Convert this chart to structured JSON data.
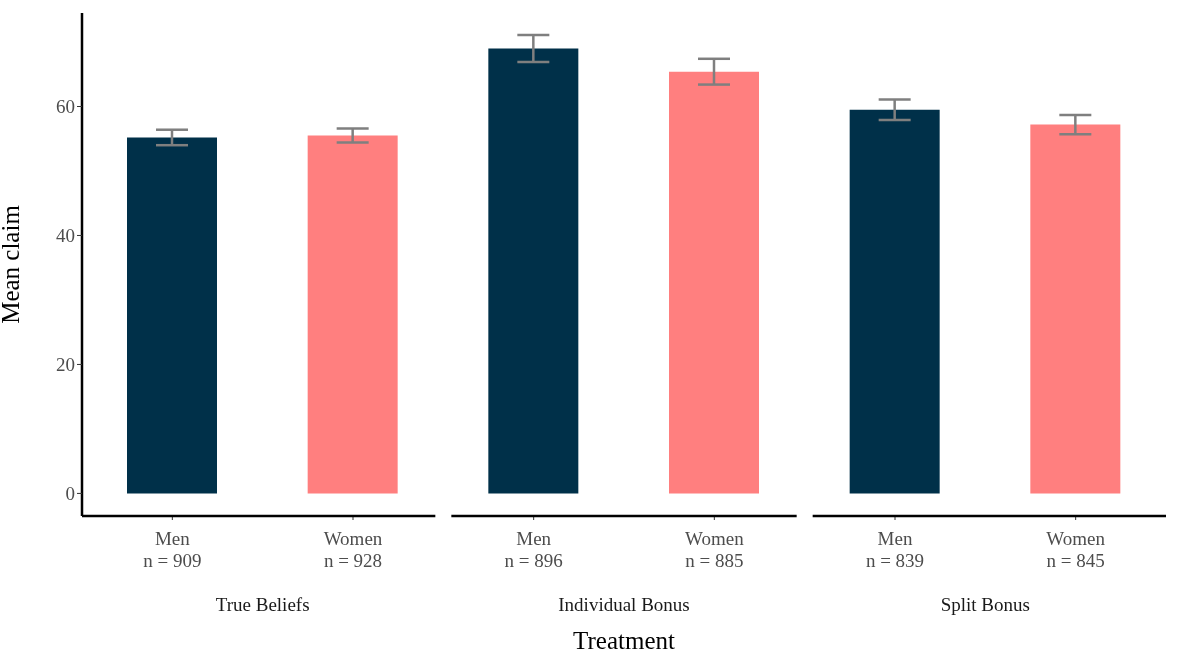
{
  "chart_data": {
    "type": "bar",
    "ylabel": "Mean claim",
    "xlabel": "Treatment",
    "categories": [
      "Men\nn = 909",
      "Women\nn = 928",
      "Men\nn = 896",
      "Women\nn = 885",
      "Men\nn = 839",
      "Women\nn = 845"
    ],
    "values": [
      55.2,
      55.5,
      69.0,
      65.4,
      59.5,
      57.2
    ],
    "errors": [
      1.2,
      1.1,
      2.1,
      2.0,
      1.6,
      1.5
    ],
    "colors": [
      "#003049",
      "#ff7f7f",
      "#003049",
      "#ff7f7f",
      "#003049",
      "#ff7f7f"
    ],
    "annotations": [
      "True Beliefs",
      "Individual Bonus",
      "Split Bonus"
    ],
    "ylim": [
      -3.5,
      74.5
    ],
    "yticks": [
      0,
      20,
      40,
      60
    ],
    "grid": false,
    "legend": false
  }
}
